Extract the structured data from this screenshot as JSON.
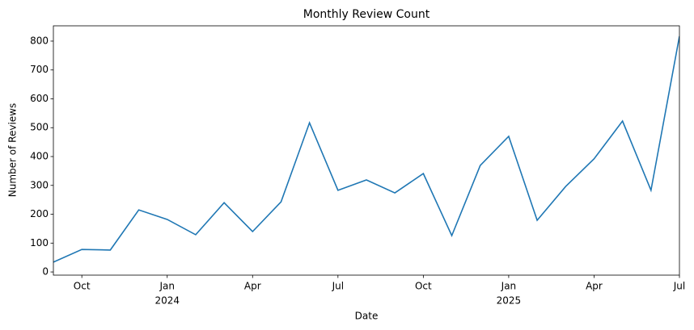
{
  "chart_data": {
    "type": "line",
    "title": "Monthly Review Count",
    "xlabel": "Date",
    "ylabel": "Number of Reviews",
    "x": [
      "2023-09",
      "2023-10",
      "2023-11",
      "2023-12",
      "2024-01",
      "2024-02",
      "2024-03",
      "2024-04",
      "2024-05",
      "2024-06",
      "2024-07",
      "2024-08",
      "2024-09",
      "2024-10",
      "2024-11",
      "2024-12",
      "2025-01",
      "2025-02",
      "2025-03",
      "2025-04",
      "2025-05",
      "2025-06",
      "2025-07"
    ],
    "series": [
      {
        "name": "Reviews",
        "color": "#1f77b4",
        "values": [
          34,
          78,
          76,
          215,
          182,
          129,
          240,
          140,
          243,
          517,
          283,
          319,
          274,
          341,
          126,
          369,
          470,
          179,
          296,
          392,
          523,
          283,
          817
        ]
      }
    ],
    "xlim": [
      "2023-09",
      "2025-07"
    ],
    "xticks": [
      {
        "value": "2023-10",
        "label": "Oct"
      },
      {
        "value": "2024-01",
        "label": "Jan"
      },
      {
        "value": "2024-04",
        "label": "Apr"
      },
      {
        "value": "2024-07",
        "label": "Jul"
      },
      {
        "value": "2024-10",
        "label": "Oct"
      },
      {
        "value": "2025-01",
        "label": "Jan"
      },
      {
        "value": "2025-04",
        "label": "Apr"
      },
      {
        "value": "2025-07",
        "label": "Jul"
      }
    ],
    "year_labels": [
      {
        "value": "2024-01",
        "label": "2024"
      },
      {
        "value": "2025-01",
        "label": "2025"
      }
    ],
    "ylim": [
      -11,
      853
    ],
    "yticks": [
      0,
      100,
      200,
      300,
      400,
      500,
      600,
      700,
      800
    ],
    "grid": false
  }
}
